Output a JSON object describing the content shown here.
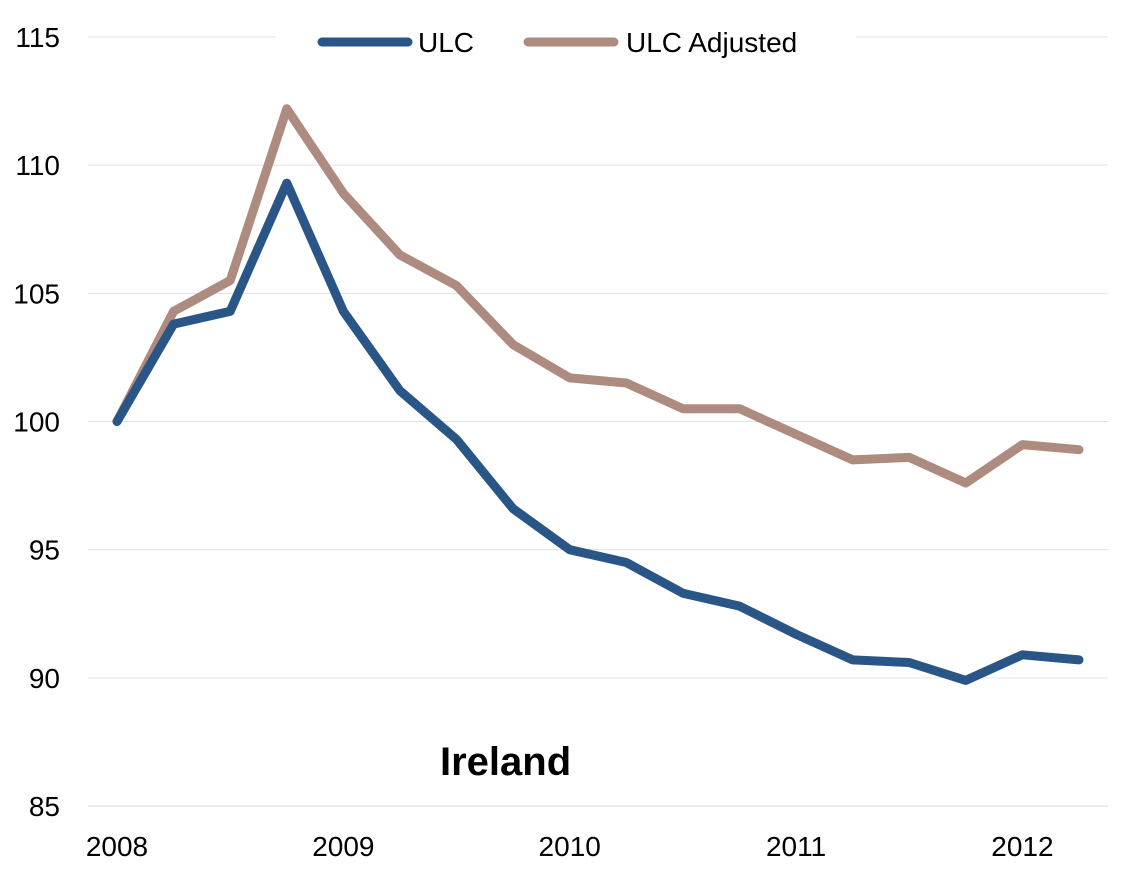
{
  "chart_data": {
    "type": "line",
    "title": "",
    "xlabel": "",
    "ylabel": "",
    "ylim": [
      85,
      115
    ],
    "yticks": [
      "85",
      "90",
      "95",
      "100",
      "105",
      "110",
      "115"
    ],
    "xticks": [
      "2008",
      "2009",
      "2010",
      "2011",
      "2012"
    ],
    "grid": true,
    "legend_position": "top",
    "annotation": "Ireland",
    "x": [
      2008.0,
      2008.25,
      2008.5,
      2008.75,
      2009.0,
      2009.25,
      2009.5,
      2009.75,
      2010.0,
      2010.25,
      2010.5,
      2010.75,
      2011.0,
      2011.25,
      2011.5,
      2011.75,
      2012.0,
      2012.25
    ],
    "series": [
      {
        "name": "ULC",
        "color": "#2A5587",
        "values": [
          100.0,
          103.8,
          104.3,
          109.3,
          104.3,
          101.2,
          99.3,
          96.6,
          95.0,
          94.5,
          93.3,
          92.8,
          91.7,
          90.7,
          90.6,
          89.9,
          90.9,
          90.7
        ]
      },
      {
        "name": "ULC Adjusted",
        "color": "#AD8B7E",
        "values": [
          100.0,
          104.3,
          105.5,
          112.2,
          108.9,
          106.5,
          105.3,
          103.0,
          101.7,
          101.5,
          100.5,
          100.5,
          99.5,
          98.5,
          98.6,
          97.6,
          99.1,
          98.9
        ]
      }
    ]
  }
}
